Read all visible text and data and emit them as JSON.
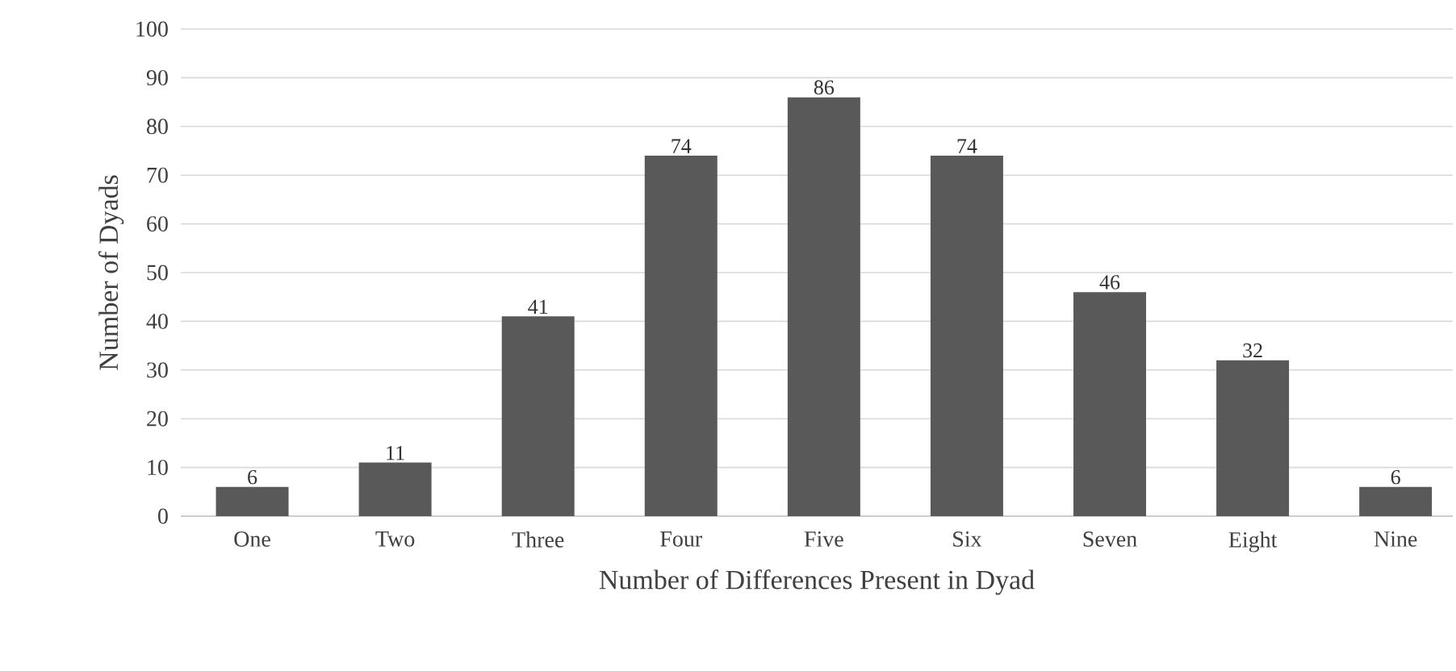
{
  "chart_data": {
    "type": "bar",
    "xlabel": "Number of Differences Present in Dyad",
    "ylabel": "Number of Dyads",
    "categories": [
      "One",
      "Two",
      "Three",
      "Four",
      "Five",
      "Six",
      "Seven",
      "Eight",
      "Nine"
    ],
    "values": [
      6,
      11,
      41,
      74,
      86,
      74,
      46,
      32,
      6
    ],
    "color": "#595959",
    "ylim": [
      0,
      100
    ],
    "yticks": [
      0,
      10,
      20,
      30,
      40,
      50,
      60,
      70,
      80,
      90,
      100
    ],
    "grid": "y",
    "data_labels": true
  }
}
